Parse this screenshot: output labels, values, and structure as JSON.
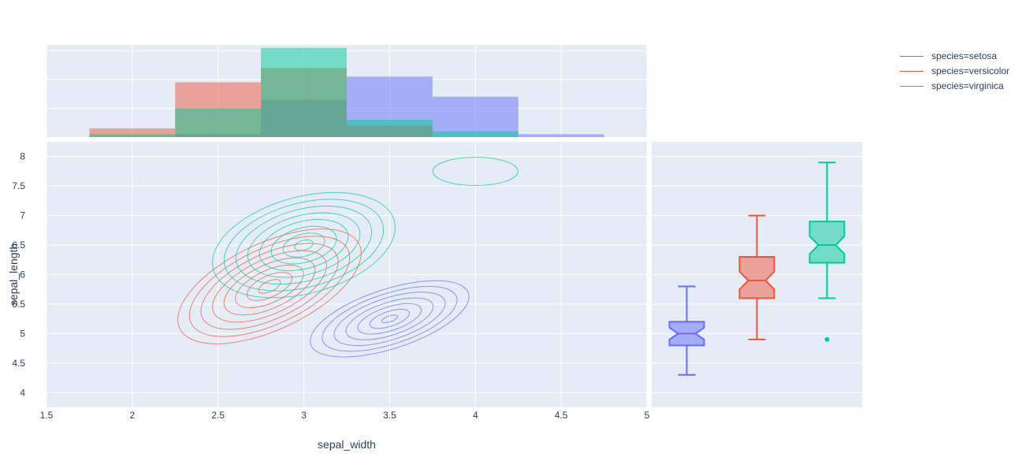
{
  "chart_data": [
    {
      "type": "histogram",
      "name": "marginal-x-histogram",
      "xlim": [
        1.5,
        5
      ],
      "bin_edges": [
        1.75,
        2.25,
        2.75,
        3.25,
        3.75,
        4.25,
        4.75
      ],
      "series": [
        {
          "name": "species=setosa",
          "counts": [
            0,
            1,
            13,
            21,
            14,
            1
          ]
        },
        {
          "name": "species=versicolor",
          "counts": [
            3,
            19,
            24,
            4,
            0,
            0
          ]
        },
        {
          "name": "species=virginica",
          "counts": [
            1,
            10,
            31,
            6,
            2,
            0
          ]
        }
      ]
    },
    {
      "type": "contour",
      "name": "density-contours",
      "xlabel": "sepal_width",
      "ylabel": "sepal_length",
      "xlim": [
        1.5,
        5
      ],
      "ylim": [
        3.75,
        8.25
      ],
      "xticks": [
        "1.5",
        "2",
        "2.5",
        "3",
        "3.5",
        "4",
        "4.5",
        "5"
      ],
      "yticks": [
        "4",
        "4.5",
        "5",
        "5.5",
        "6",
        "6.5",
        "7",
        "7.5",
        "8"
      ],
      "series": [
        {
          "name": "species=setosa",
          "peak": {
            "x": 3.5,
            "y": 5.25
          },
          "contours": 7
        },
        {
          "name": "species=versicolor",
          "peak": {
            "x": 2.8,
            "y": 5.8
          },
          "contours": 8
        },
        {
          "name": "species=virginica",
          "peak": {
            "x": 3.0,
            "y": 6.5
          },
          "contours": 8
        }
      ]
    },
    {
      "type": "box",
      "name": "marginal-y-box",
      "notched": true,
      "series": [
        {
          "name": "species=setosa",
          "min": 4.3,
          "q1": 4.8,
          "median": 5.0,
          "q3": 5.2,
          "max": 5.8,
          "notch": [
            4.9,
            5.1
          ],
          "outliers": []
        },
        {
          "name": "species=versicolor",
          "min": 4.9,
          "q1": 5.6,
          "median": 5.9,
          "q3": 6.3,
          "max": 7.0,
          "notch": [
            5.75,
            6.05
          ],
          "outliers": []
        },
        {
          "name": "species=virginica",
          "min": 5.6,
          "q1": 6.2,
          "median": 6.5,
          "q3": 6.9,
          "max": 7.9,
          "notch": [
            6.35,
            6.65
          ],
          "outliers": [
            4.9
          ]
        }
      ]
    }
  ],
  "legend": {
    "placement": "top-right",
    "items": [
      {
        "label": "species=setosa",
        "color": "#636efa"
      },
      {
        "label": "species=versicolor",
        "color": "#ef553b"
      },
      {
        "label": "species=virginica",
        "color": "#00cc96"
      }
    ]
  },
  "colors": {
    "plot_bg": "#e5ecf6",
    "grid": "#ffffff",
    "text": "#2a3f5f"
  }
}
